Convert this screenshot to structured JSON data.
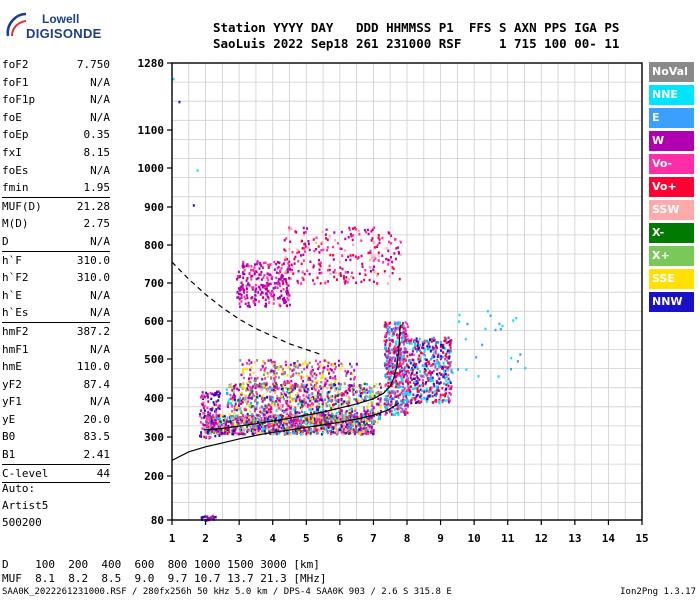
{
  "logo": {
    "line1": "Lowell",
    "line2": "DIGISONDE"
  },
  "header": {
    "line1": "Station YYYY DAY   DDD HHMMSS P1  FFS S AXN PPS IGA PS",
    "line2": "SaoLuis 2022 Sep18 261 231000 RSF     1 715 100 00- 11"
  },
  "params": [
    {
      "label": "foF2",
      "value": "7.750"
    },
    {
      "label": "foF1",
      "value": "N/A"
    },
    {
      "label": "foF1p",
      "value": "N/A"
    },
    {
      "label": "foE",
      "value": "N/A"
    },
    {
      "label": "foEp",
      "value": "0.35"
    },
    {
      "label": "fxI",
      "value": "8.15"
    },
    {
      "label": "foEs",
      "value": "N/A"
    },
    {
      "label": "fmin",
      "value": "1.95"
    },
    {
      "sep": true
    },
    {
      "label": "MUF(D)",
      "value": "21.28"
    },
    {
      "label": "M(D)",
      "value": "2.75"
    },
    {
      "label": "D",
      "value": "N/A"
    },
    {
      "sep": true
    },
    {
      "label": "h`F",
      "value": "310.0"
    },
    {
      "label": "h`F2",
      "value": "310.0"
    },
    {
      "label": "h`E",
      "value": "N/A"
    },
    {
      "label": "h`Es",
      "value": "N/A"
    },
    {
      "sep": true
    },
    {
      "label": "hmF2",
      "value": "387.2"
    },
    {
      "label": "hmF1",
      "value": "N/A"
    },
    {
      "label": "hmE",
      "value": "110.0"
    },
    {
      "label": "yF2",
      "value": "87.4"
    },
    {
      "label": "yF1",
      "value": "N/A"
    },
    {
      "label": "yE",
      "value": "20.0"
    },
    {
      "label": "B0",
      "value": "83.5"
    },
    {
      "label": "B1",
      "value": "2.41"
    },
    {
      "sep": true
    },
    {
      "label": "C-level",
      "value": "44"
    },
    {
      "sep": true
    }
  ],
  "auto": {
    "line1": "Auto:",
    "line2": "Artist5",
    "line3": "500200"
  },
  "legend": [
    {
      "label": "NoVal",
      "color": "#8a8a8a"
    },
    {
      "label": "NNE",
      "color": "#00e5ff"
    },
    {
      "label": "E",
      "color": "#3aa0ff"
    },
    {
      "label": "W",
      "color": "#b000b0"
    },
    {
      "label": "Vo-",
      "color": "#ff2ea8"
    },
    {
      "label": "Vo+",
      "color": "#ff0033"
    },
    {
      "label": "SSW",
      "color": "#ffaaaa"
    },
    {
      "label": "X-",
      "color": "#007a00"
    },
    {
      "label": "X+",
      "color": "#7ac85a"
    },
    {
      "label": "SSE",
      "color": "#ffe000"
    },
    {
      "label": "NNW",
      "color": "#1a10c8"
    }
  ],
  "bottom": {
    "d_line": "D    100  200  400  600  800 1000 1500 3000 [km]",
    "muf_line": "MUF  8.1  8.2  8.5  9.0  9.7 10.7 13.7 21.3 [MHz]"
  },
  "footer": "SAA0K_2022261231000.RSF / 280fx256h 50 kHz 5.0 km / DPS-4 SAA0K 903 / 2.6 S 315.8 E",
  "version": "Ion2Png 1.3.17",
  "chart_data": {
    "type": "scatter",
    "x_ticks": [
      "1",
      "2",
      "3",
      "4",
      "5",
      "6",
      "7",
      "8",
      "9",
      "10",
      "11",
      "12",
      "13",
      "14",
      "15"
    ],
    "y_ticks": [
      "80",
      "200",
      "300",
      "400",
      "500",
      "600",
      "700",
      "800",
      "900",
      "1000",
      "1100",
      "1280"
    ],
    "xlim": [
      1,
      15
    ],
    "y_axis": "height in km, labeled ticks 80-1280",
    "grid": true,
    "series": [
      {
        "name": "hF2 profile (solid)",
        "x": [
          1.0,
          1.5,
          2.0,
          2.5,
          3.0,
          3.5,
          4.0,
          4.5,
          5.0,
          5.5,
          6.0,
          6.5,
          7.0,
          7.4,
          7.6,
          7.75
        ],
        "y": [
          240,
          262,
          275,
          285,
          295,
          304,
          312,
          318,
          325,
          331,
          338,
          346,
          356,
          368,
          378,
          387
        ]
      },
      {
        "name": "virtual height trace (solid)",
        "x": [
          1.95,
          2.5,
          3.0,
          3.5,
          4.0,
          4.5,
          5.0,
          5.5,
          6.0,
          6.5,
          7.0,
          7.3,
          7.5,
          7.6,
          7.7,
          7.75,
          7.8
        ],
        "y": [
          318,
          322,
          328,
          334,
          341,
          348,
          356,
          364,
          374,
          385,
          398,
          412,
          430,
          450,
          480,
          520,
          590
        ]
      },
      {
        "name": "MUF(D) curve (dashed)",
        "x": [
          1.0,
          1.5,
          2.0,
          2.5,
          3.0,
          3.5,
          4.0,
          4.5,
          5.0,
          5.5
        ],
        "y": [
          755,
          710,
          670,
          635,
          605,
          580,
          560,
          540,
          525,
          510
        ]
      }
    ]
  }
}
